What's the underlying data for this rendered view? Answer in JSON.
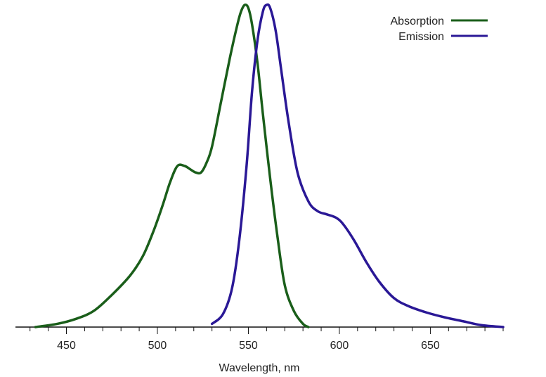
{
  "chart_data": {
    "type": "line",
    "title": "",
    "xlabel": "Wavelength, nm",
    "ylabel": "",
    "xlim": [
      422,
      690
    ],
    "ylim": [
      0,
      1
    ],
    "x_ticks": [
      450,
      500,
      550,
      600,
      650
    ],
    "x_tick_labels": [
      "450",
      "500",
      "550",
      "600",
      "650"
    ],
    "grid": false,
    "legend_position": "top-right",
    "series": [
      {
        "name": "Absorption",
        "color": "#1a5e1a",
        "x": [
          433,
          445,
          455,
          465,
          475,
          485,
          492,
          498,
          503,
          507,
          511,
          515,
          518,
          521,
          524,
          527,
          530,
          535,
          540,
          544,
          546,
          548,
          550,
          552,
          555,
          558,
          562,
          566,
          570,
          575,
          580,
          583
        ],
        "y": [
          0.0,
          0.01,
          0.025,
          0.05,
          0.1,
          0.16,
          0.22,
          0.3,
          0.38,
          0.45,
          0.5,
          0.5,
          0.49,
          0.48,
          0.48,
          0.51,
          0.56,
          0.7,
          0.84,
          0.94,
          0.98,
          1.0,
          0.99,
          0.94,
          0.82,
          0.66,
          0.46,
          0.28,
          0.13,
          0.05,
          0.01,
          0.0
        ]
      },
      {
        "name": "Emission",
        "color": "#2a1896",
        "x": [
          530,
          536,
          541,
          545,
          549,
          552,
          555,
          558,
          560,
          562,
          565,
          568,
          572,
          577,
          583,
          588,
          593,
          598,
          602,
          608,
          615,
          622,
          630,
          638,
          648,
          658,
          668,
          678,
          690
        ],
        "y": [
          0.01,
          0.04,
          0.12,
          0.27,
          0.5,
          0.73,
          0.89,
          0.98,
          1.0,
          0.99,
          0.92,
          0.8,
          0.64,
          0.48,
          0.39,
          0.36,
          0.35,
          0.34,
          0.32,
          0.27,
          0.2,
          0.14,
          0.09,
          0.065,
          0.045,
          0.03,
          0.018,
          0.006,
          0.0
        ]
      }
    ]
  }
}
